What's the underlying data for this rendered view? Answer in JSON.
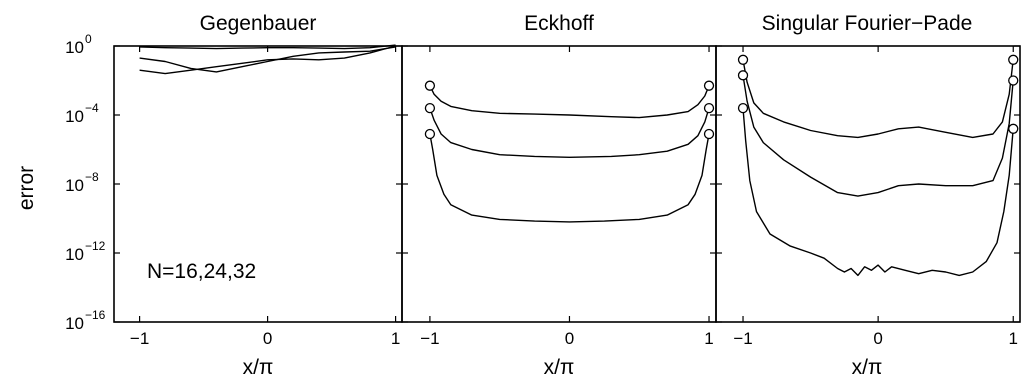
{
  "chart_data": [
    {
      "type": "line",
      "title": "Gegenbauer",
      "xlabel": "x/π",
      "ylabel": "error",
      "xlim": [
        -1.2,
        1.05
      ],
      "ylim_log10": [
        -16,
        0
      ],
      "y_scale": "log",
      "x_ticks": [
        "−1",
        "0",
        "1"
      ],
      "x_tick_values": [
        -1,
        0,
        1
      ],
      "y_tick_exponents": [
        0,
        -4,
        -8,
        -12,
        -16
      ],
      "y_tick_base": "10",
      "annotation": "N=16,24,32",
      "markers": false,
      "series": [
        {
          "x": [
            -1,
            -0.8,
            -0.6,
            -0.4,
            -0.2,
            0,
            0.2,
            0.4,
            0.6,
            0.8,
            1
          ],
          "log10_y": [
            -0.05,
            -0.1,
            -0.12,
            -0.15,
            -0.12,
            -0.1,
            -0.1,
            -0.12,
            -0.15,
            -0.1,
            0.05
          ]
        },
        {
          "x": [
            -1,
            -0.8,
            -0.6,
            -0.4,
            -0.2,
            0,
            0.2,
            0.4,
            0.6,
            0.8,
            1
          ],
          "log10_y": [
            -1.4,
            -1.6,
            -1.4,
            -1.2,
            -1.0,
            -0.8,
            -0.75,
            -0.8,
            -0.7,
            -0.4,
            0.0
          ]
        },
        {
          "x": [
            -1,
            -0.8,
            -0.6,
            -0.4,
            -0.2,
            0,
            0.2,
            0.4,
            0.6,
            0.8,
            1
          ],
          "log10_y": [
            -0.7,
            -0.9,
            -1.3,
            -1.5,
            -1.2,
            -0.9,
            -0.6,
            -0.4,
            -0.35,
            -0.3,
            -0.05
          ]
        }
      ]
    },
    {
      "type": "line",
      "title": "Eckhoff",
      "xlabel": "x/π",
      "xlim": [
        -1.2,
        1.05
      ],
      "ylim_log10": [
        -16,
        0
      ],
      "y_scale": "log",
      "x_ticks": [
        "−1",
        "0",
        "1"
      ],
      "x_tick_values": [
        -1,
        0,
        1
      ],
      "markers": true,
      "series": [
        {
          "x": [
            -1,
            -0.97,
            -0.92,
            -0.85,
            -0.7,
            -0.5,
            -0.25,
            0,
            0.3,
            0.5,
            0.7,
            0.85,
            0.92,
            0.97,
            1
          ],
          "log10_y": [
            -2.3,
            -2.8,
            -3.2,
            -3.5,
            -3.75,
            -3.9,
            -3.95,
            -4.0,
            -4.1,
            -4.15,
            -4.0,
            -3.8,
            -3.4,
            -2.9,
            -2.3
          ]
        },
        {
          "x": [
            -1,
            -0.97,
            -0.92,
            -0.85,
            -0.7,
            -0.5,
            -0.25,
            0,
            0.3,
            0.5,
            0.7,
            0.85,
            0.92,
            0.97,
            1
          ],
          "log10_y": [
            -3.6,
            -4.3,
            -5.1,
            -5.6,
            -6.0,
            -6.3,
            -6.4,
            -6.45,
            -6.4,
            -6.3,
            -6.1,
            -5.7,
            -5.2,
            -4.4,
            -3.6
          ]
        },
        {
          "x": [
            -1,
            -0.98,
            -0.95,
            -0.9,
            -0.85,
            -0.7,
            -0.5,
            -0.25,
            0,
            0.25,
            0.5,
            0.7,
            0.85,
            0.9,
            0.95,
            0.98,
            1
          ],
          "log10_y": [
            -5.1,
            -6.0,
            -7.5,
            -8.6,
            -9.2,
            -9.8,
            -10.05,
            -10.15,
            -10.2,
            -10.15,
            -10.05,
            -9.8,
            -9.2,
            -8.6,
            -7.5,
            -6.0,
            -5.1
          ]
        }
      ]
    },
    {
      "type": "line",
      "title": "Singular Fourier−Pade",
      "xlabel": "x/π",
      "xlim": [
        -1.2,
        1.05
      ],
      "ylim_log10": [
        -16,
        0
      ],
      "y_scale": "log",
      "x_ticks": [
        "−1",
        "0",
        "1"
      ],
      "x_tick_values": [
        -1,
        0,
        1
      ],
      "markers": true,
      "series": [
        {
          "x": [
            -1,
            -0.97,
            -0.92,
            -0.85,
            -0.7,
            -0.5,
            -0.3,
            -0.15,
            0,
            0.15,
            0.3,
            0.5,
            0.7,
            0.85,
            0.92,
            0.97,
            1
          ],
          "log10_y": [
            -0.8,
            -2.1,
            -3.3,
            -3.9,
            -4.4,
            -4.9,
            -5.2,
            -5.3,
            -5.1,
            -4.8,
            -4.7,
            -5.0,
            -5.3,
            -5.1,
            -4.4,
            -2.8,
            -0.8
          ]
        },
        {
          "x": [
            -1,
            -0.97,
            -0.92,
            -0.85,
            -0.7,
            -0.5,
            -0.3,
            -0.15,
            0,
            0.15,
            0.3,
            0.5,
            0.7,
            0.85,
            0.92,
            0.97,
            1
          ],
          "log10_y": [
            -1.7,
            -3.2,
            -4.7,
            -5.6,
            -6.6,
            -7.6,
            -8.5,
            -8.7,
            -8.5,
            -8.1,
            -8.0,
            -8.1,
            -8.1,
            -7.8,
            -6.5,
            -4.5,
            -2.0
          ]
        },
        {
          "x": [
            -1,
            -0.98,
            -0.95,
            -0.9,
            -0.8,
            -0.65,
            -0.5,
            -0.4,
            -0.3,
            -0.25,
            -0.2,
            -0.15,
            -0.1,
            -0.05,
            0,
            0.05,
            0.1,
            0.2,
            0.3,
            0.4,
            0.5,
            0.6,
            0.7,
            0.8,
            0.88,
            0.93,
            0.97,
            1
          ],
          "log10_y": [
            -3.6,
            -5.5,
            -7.8,
            -9.6,
            -10.9,
            -11.6,
            -12.0,
            -12.3,
            -12.9,
            -13.1,
            -12.9,
            -13.3,
            -12.8,
            -13.0,
            -12.7,
            -13.1,
            -12.8,
            -13.0,
            -13.2,
            -13.0,
            -13.1,
            -13.3,
            -13.1,
            -12.5,
            -11.4,
            -9.6,
            -7.5,
            -4.8
          ]
        }
      ]
    }
  ]
}
